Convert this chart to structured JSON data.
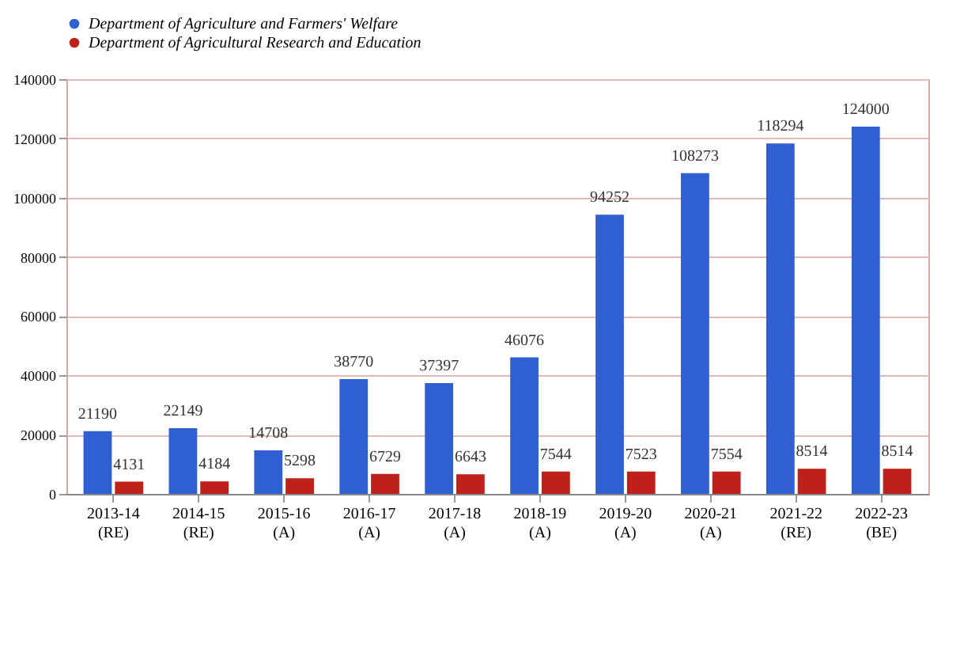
{
  "chart_data": {
    "type": "bar",
    "categories": [
      "2013-14 (RE)",
      "2014-15 (RE)",
      "2015-16 (A)",
      "2016-17 (A)",
      "2017-18 (A)",
      "2018-19 (A)",
      "2019-20 (A)",
      "2020-21 (A)",
      "2021-22 (RE)",
      "2022-23 (BE)"
    ],
    "series": [
      {
        "name": "Department of Agriculture and Farmers' Welfare",
        "color": "#2f5fd0",
        "values": [
          21190,
          22149,
          14708,
          38770,
          37397,
          46076,
          94252,
          108273,
          118294,
          124000
        ]
      },
      {
        "name": "Department of Agricultural Research and Education",
        "color": "#c0201a",
        "values": [
          4131,
          4184,
          5298,
          6729,
          6643,
          7544,
          7523,
          7554,
          8514,
          8514
        ]
      }
    ],
    "ylim": [
      0,
      140000
    ],
    "yticks": [
      0,
      20000,
      40000,
      60000,
      80000,
      100000,
      120000,
      140000
    ],
    "grid": "y",
    "legend": "top",
    "data_labels": true
  }
}
